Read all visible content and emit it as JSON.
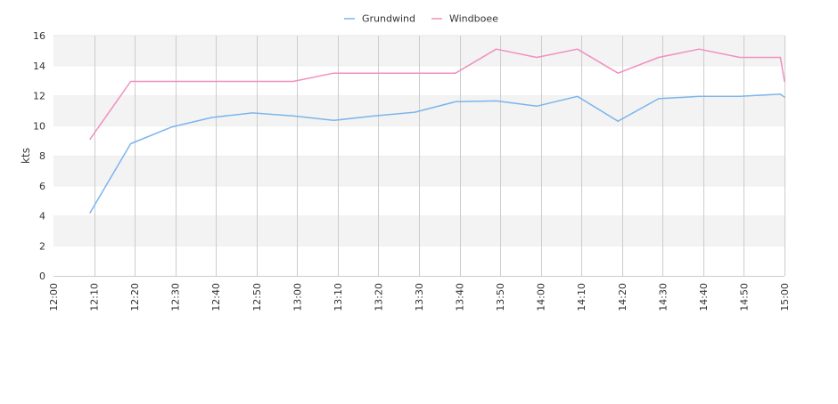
{
  "chart_data": {
    "type": "line",
    "title": "",
    "xlabel": "",
    "ylabel": "kts",
    "ylim": [
      0,
      16
    ],
    "y_ticks": [
      0,
      2,
      4,
      6,
      8,
      10,
      12,
      14,
      16
    ],
    "x_ticks": [
      "12:00",
      "12:10",
      "12:20",
      "12:30",
      "12:40",
      "12:50",
      "13:00",
      "13:10",
      "13:20",
      "13:30",
      "13:40",
      "13:50",
      "14:00",
      "14:10",
      "14:20",
      "14:30",
      "14:40",
      "14:50",
      "15:00"
    ],
    "xlim": [
      "12:00",
      "15:00"
    ],
    "grid": "horizontal bands + vertical lines",
    "legend_position": "top-center",
    "series": [
      {
        "name": "Grundwind",
        "color": "#7cb5ec",
        "points": [
          {
            "x": "12:09",
            "y": 4.2
          },
          {
            "x": "12:19",
            "y": 8.8
          },
          {
            "x": "12:29",
            "y": 9.9
          },
          {
            "x": "12:39",
            "y": 10.55
          },
          {
            "x": "12:49",
            "y": 10.85
          },
          {
            "x": "12:59",
            "y": 10.65
          },
          {
            "x": "13:09",
            "y": 10.35
          },
          {
            "x": "13:19",
            "y": 10.65
          },
          {
            "x": "13:29",
            "y": 10.9
          },
          {
            "x": "13:39",
            "y": 11.6
          },
          {
            "x": "13:49",
            "y": 11.65
          },
          {
            "x": "13:59",
            "y": 11.3
          },
          {
            "x": "14:09",
            "y": 11.95
          },
          {
            "x": "14:19",
            "y": 10.3
          },
          {
            "x": "14:29",
            "y": 11.8
          },
          {
            "x": "14:39",
            "y": 11.95
          },
          {
            "x": "14:49",
            "y": 11.95
          },
          {
            "x": "14:59",
            "y": 12.1
          },
          {
            "x": "15:00",
            "y": 11.9
          }
        ]
      },
      {
        "name": "Windboee",
        "color": "#f28fbe",
        "points": [
          {
            "x": "12:09",
            "y": 9.1
          },
          {
            "x": "12:19",
            "y": 12.95
          },
          {
            "x": "12:29",
            "y": 12.95
          },
          {
            "x": "12:39",
            "y": 12.95
          },
          {
            "x": "12:49",
            "y": 12.95
          },
          {
            "x": "12:59",
            "y": 12.95
          },
          {
            "x": "13:09",
            "y": 13.5
          },
          {
            "x": "13:19",
            "y": 13.5
          },
          {
            "x": "13:29",
            "y": 13.5
          },
          {
            "x": "13:39",
            "y": 13.5
          },
          {
            "x": "13:49",
            "y": 15.1
          },
          {
            "x": "13:59",
            "y": 14.55
          },
          {
            "x": "14:09",
            "y": 15.1
          },
          {
            "x": "14:19",
            "y": 13.5
          },
          {
            "x": "14:29",
            "y": 14.55
          },
          {
            "x": "14:39",
            "y": 15.1
          },
          {
            "x": "14:49",
            "y": 14.55
          },
          {
            "x": "14:59",
            "y": 14.55
          },
          {
            "x": "15:00",
            "y": 12.95
          }
        ]
      }
    ]
  }
}
